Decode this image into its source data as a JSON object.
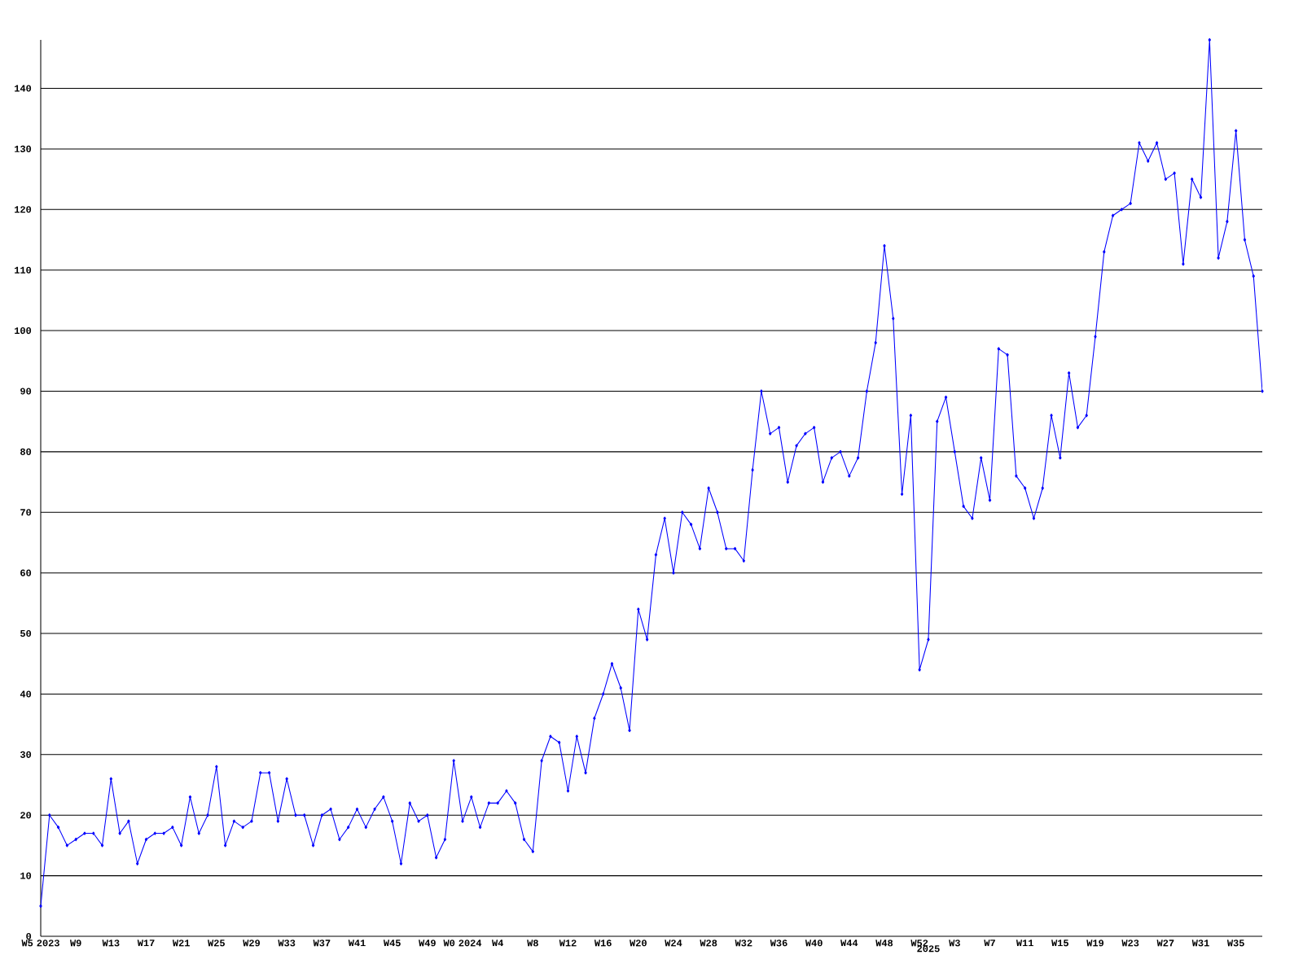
{
  "chart_data": {
    "type": "line",
    "categories": [
      "W5 2023",
      null,
      null,
      null,
      "W9",
      null,
      null,
      null,
      "W13",
      null,
      null,
      null,
      "W17",
      null,
      null,
      null,
      "W21",
      null,
      null,
      null,
      "W25",
      null,
      null,
      null,
      "W29",
      null,
      null,
      null,
      "W33",
      null,
      null,
      null,
      "W37",
      null,
      null,
      null,
      "W41",
      null,
      null,
      null,
      "W45",
      null,
      null,
      null,
      "W49",
      null,
      null,
      null,
      "W0 2024",
      null,
      null,
      null,
      "W4",
      null,
      null,
      null,
      "W8",
      null,
      null,
      null,
      "W12",
      null,
      null,
      null,
      "W16",
      null,
      null,
      null,
      "W20",
      null,
      null,
      null,
      "W24",
      null,
      null,
      null,
      "W28",
      null,
      null,
      null,
      "W32",
      null,
      null,
      null,
      "W36",
      null,
      null,
      null,
      "W40",
      null,
      null,
      null,
      "W44",
      null,
      null,
      null,
      "W48",
      null,
      null,
      null,
      "W52",
      "2025",
      null,
      null,
      "W3",
      null,
      null,
      null,
      "W7",
      null,
      null,
      null,
      "W11",
      null,
      null,
      null,
      "W15",
      null,
      null,
      null,
      "W19",
      null,
      null,
      null,
      "W23",
      null,
      null,
      null,
      "W27",
      null,
      null,
      null,
      "W31",
      null,
      null,
      null,
      "W35",
      null,
      null,
      null
    ],
    "values": [
      5,
      20,
      18,
      15,
      16,
      17,
      17,
      15,
      26,
      17,
      19,
      12,
      16,
      17,
      17,
      18,
      15,
      23,
      17,
      20,
      28,
      15,
      19,
      18,
      19,
      27,
      27,
      19,
      26,
      20,
      20,
      15,
      20,
      21,
      16,
      18,
      21,
      18,
      21,
      23,
      19,
      12,
      22,
      19,
      20,
      13,
      16,
      29,
      19,
      23,
      18,
      22,
      22,
      24,
      22,
      16,
      14,
      29,
      33,
      32,
      24,
      33,
      27,
      36,
      40,
      45,
      41,
      34,
      54,
      49,
      63,
      69,
      60,
      70,
      68,
      64,
      74,
      70,
      64,
      64,
      62,
      77,
      90,
      83,
      84,
      75,
      81,
      83,
      84,
      75,
      79,
      80,
      76,
      79,
      90,
      98,
      114,
      102,
      73,
      86,
      44,
      49,
      85,
      89,
      80,
      71,
      69,
      79,
      72,
      97,
      96,
      76,
      74,
      69,
      74,
      86,
      79,
      93,
      84,
      86,
      99,
      113,
      119,
      120,
      121,
      131,
      128,
      131,
      125,
      126,
      111,
      125,
      122,
      148,
      112,
      118,
      133,
      115,
      109,
      90
    ],
    "color": "#0000ff",
    "ylim": [
      0,
      148
    ],
    "yticks": [
      0,
      10,
      20,
      30,
      40,
      50,
      60,
      70,
      80,
      90,
      100,
      110,
      120,
      130,
      140
    ],
    "grid": "y",
    "marker": "diamond"
  }
}
